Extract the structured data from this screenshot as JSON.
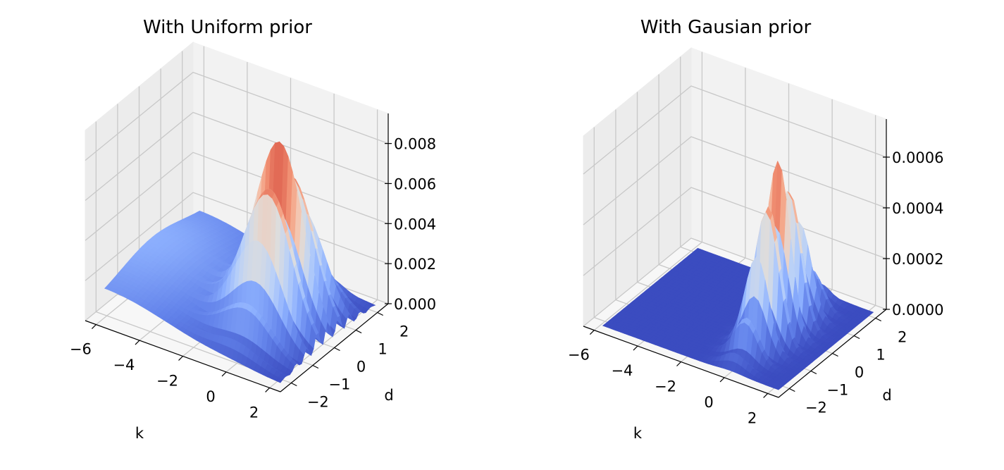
{
  "chart_data": [
    {
      "type": "surface",
      "title": "With Uniform prior",
      "xlabel": "k",
      "ylabel": "d",
      "zlabel": "",
      "x_ticks": [
        "−6",
        "−4",
        "−2",
        "0",
        "2"
      ],
      "y_ticks": [
        "−2",
        "−1",
        "0",
        "1",
        "2"
      ],
      "z_ticks": [
        "0.000",
        "0.002",
        "0.004",
        "0.006",
        "0.008"
      ],
      "xlim": [
        -6.5,
        2.5
      ],
      "ylim": [
        -2.5,
        2.5
      ],
      "zlim": [
        0,
        0.0095
      ],
      "grid": true,
      "colormap": "coolwarm",
      "surface": {
        "peak_k": 0.0,
        "peak_d": 0.0,
        "peak_value": 0.0089,
        "ridge_width_k": 1.1,
        "oscillation_period_d": 0.5,
        "tail_toward_k": -6,
        "tail_level": 0.0022
      }
    },
    {
      "type": "surface",
      "title": "With Gausian prior",
      "xlabel": "k",
      "ylabel": "d",
      "zlabel": "",
      "x_ticks": [
        "−6",
        "−4",
        "−2",
        "0",
        "2"
      ],
      "y_ticks": [
        "−2",
        "−1",
        "0",
        "1",
        "2"
      ],
      "z_ticks": [
        "0.0000",
        "0.0002",
        "0.0004",
        "0.0006"
      ],
      "xlim": [
        -6.5,
        2.5
      ],
      "ylim": [
        -2.5,
        2.5
      ],
      "zlim": [
        0,
        0.00075
      ],
      "grid": true,
      "colormap": "coolwarm",
      "surface": {
        "peak_k": 0.0,
        "peak_d": 0.0,
        "peak_value": 0.00068,
        "ridge_width_k": 0.55,
        "oscillation_period_d": 0.5,
        "tail_toward_k": -6,
        "tail_level": 0.0
      }
    }
  ]
}
